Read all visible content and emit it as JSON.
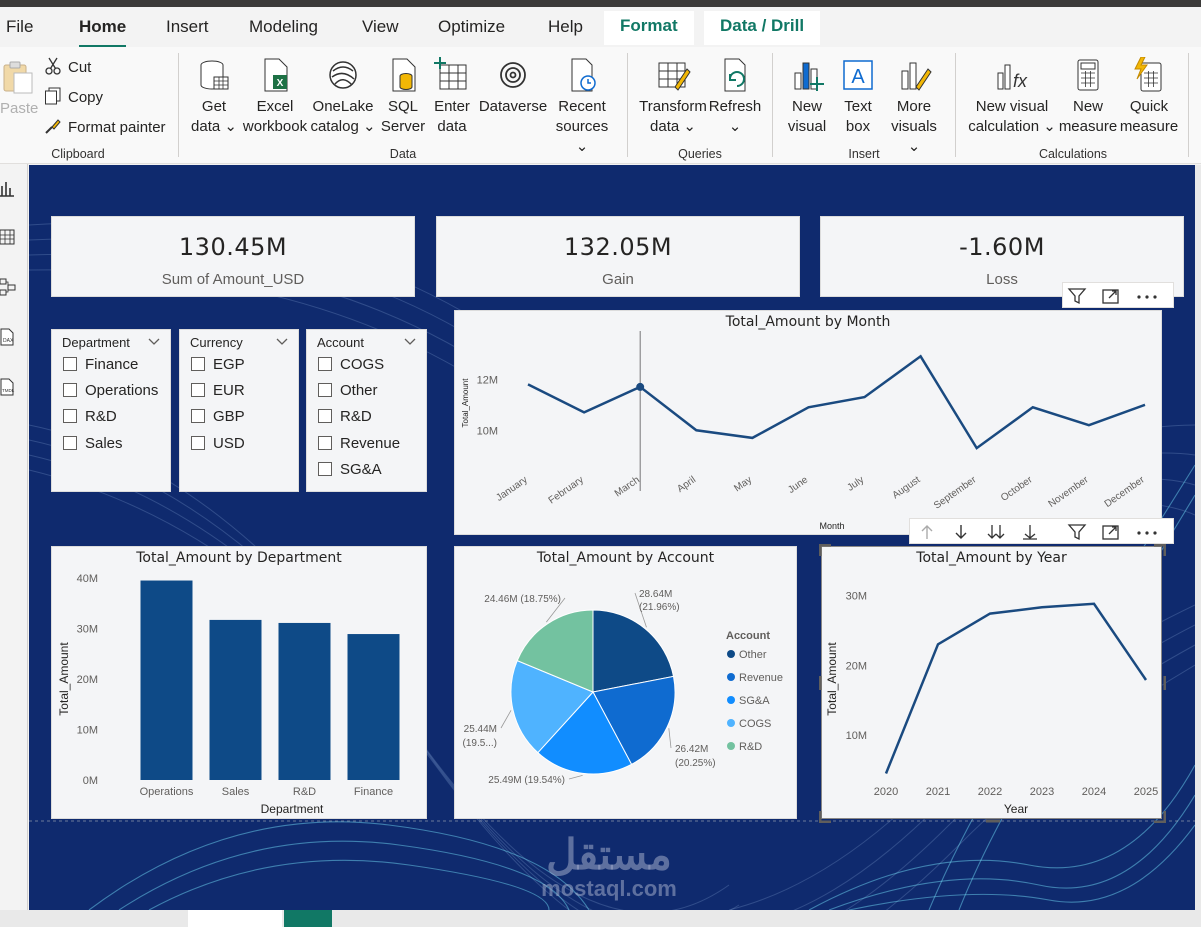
{
  "menu": {
    "items": [
      "File",
      "Home",
      "Insert",
      "Modeling",
      "View",
      "Optimize",
      "Help"
    ],
    "active": "Home",
    "context_tabs": [
      "Format",
      "Data / Drill"
    ]
  },
  "ribbon": {
    "clipboard": {
      "paste": "Paste",
      "cut": "Cut",
      "copy": "Copy",
      "format_painter": "Format painter",
      "label": "Clipboard"
    },
    "data": {
      "get_data": [
        "Get",
        "data ⌄"
      ],
      "excel": [
        "Excel",
        "workbook"
      ],
      "onelake": [
        "OneLake",
        "catalog ⌄"
      ],
      "sql": [
        "SQL",
        "Server"
      ],
      "enter": [
        "Enter",
        "data"
      ],
      "dataverse": [
        "Dataverse",
        ""
      ],
      "recent": [
        "Recent",
        "sources ⌄"
      ],
      "label": "Data"
    },
    "queries": {
      "transform": [
        "Transform",
        "data ⌄"
      ],
      "refresh": [
        "Refresh",
        "⌄"
      ],
      "label": "Queries"
    },
    "insert": {
      "new_visual": [
        "New",
        "visual"
      ],
      "text_box": [
        "Text",
        "box"
      ],
      "more_visuals": [
        "More",
        "visuals ⌄"
      ],
      "label": "Insert"
    },
    "calculations": {
      "new_visual_calc": [
        "New visual",
        "calculation ⌄"
      ],
      "new_measure": [
        "New",
        "measure"
      ],
      "quick_measure": [
        "Quick",
        "measure"
      ],
      "label": "Calculations"
    }
  },
  "kpis": [
    {
      "value": "130.45M",
      "label": "Sum of Amount_USD"
    },
    {
      "value": "132.05M",
      "label": "Gain"
    },
    {
      "value": "-1.60M",
      "label": "Loss"
    }
  ],
  "slicers": [
    {
      "title": "Department",
      "items": [
        "Finance",
        "Operations",
        "R&D",
        "Sales"
      ]
    },
    {
      "title": "Currency",
      "items": [
        "EGP",
        "EUR",
        "GBP",
        "USD"
      ]
    },
    {
      "title": "Account",
      "items": [
        "COGS",
        "Other",
        "R&D",
        "Revenue",
        "SG&A"
      ]
    }
  ],
  "colors": {
    "canvas_bg": "#0f2a6e",
    "line": "#1a4a80",
    "bar": "#0e4a87",
    "accent": "#117865",
    "pie": [
      "#0e4a87",
      "#0f6bd0",
      "#118dff",
      "#4fb3ff",
      "#73c2a0"
    ]
  },
  "chart_data": [
    {
      "type": "line",
      "title": "Total_Amount by Month",
      "xlabel": "Month",
      "ylabel": "Total_Amount",
      "categories": [
        "January",
        "February",
        "March",
        "April",
        "May",
        "June",
        "July",
        "August",
        "September",
        "October",
        "November",
        "December"
      ],
      "values": [
        11.8,
        10.7,
        11.7,
        10.0,
        9.7,
        10.9,
        11.3,
        12.9,
        9.3,
        10.9,
        10.2,
        11.0
      ],
      "y_ticks": [
        "10M",
        "12M"
      ],
      "ylim": [
        8.6,
        13.5
      ],
      "highlight": "March"
    },
    {
      "type": "bar",
      "title": "Total_Amount by Department",
      "xlabel": "Department",
      "ylabel": "Total_Amount",
      "categories": [
        "Operations",
        "Sales",
        "R&D",
        "Finance"
      ],
      "values": [
        39.5,
        31.7,
        31.1,
        28.9
      ],
      "y_ticks": [
        "0M",
        "10M",
        "20M",
        "30M",
        "40M"
      ],
      "ylim": [
        0,
        40
      ]
    },
    {
      "type": "pie",
      "title": "Total_Amount by Account",
      "legend_title": "Account",
      "categories": [
        "Other",
        "Revenue",
        "SG&A",
        "COGS",
        "R&D"
      ],
      "values": [
        28.64,
        26.42,
        25.49,
        25.44,
        24.46
      ],
      "labels": [
        "28.64M (21.96%)",
        "26.42M (20.25%)",
        "25.49M (19.54%)",
        "25.44M (19.5...)",
        "24.46M (18.75%)"
      ]
    },
    {
      "type": "line",
      "title": "Total_Amount by Year",
      "xlabel": "Year",
      "ylabel": "Total_Amount",
      "categories": [
        "2020",
        "2021",
        "2022",
        "2023",
        "2024",
        "2025"
      ],
      "values": [
        4.5,
        23.0,
        27.4,
        28.3,
        28.8,
        17.9
      ],
      "y_ticks": [
        "10M",
        "20M",
        "30M"
      ],
      "ylim": [
        2.0,
        32.5
      ]
    }
  ],
  "watermark": {
    "arabic": "مستقل",
    "latin": "mostaql.com"
  }
}
